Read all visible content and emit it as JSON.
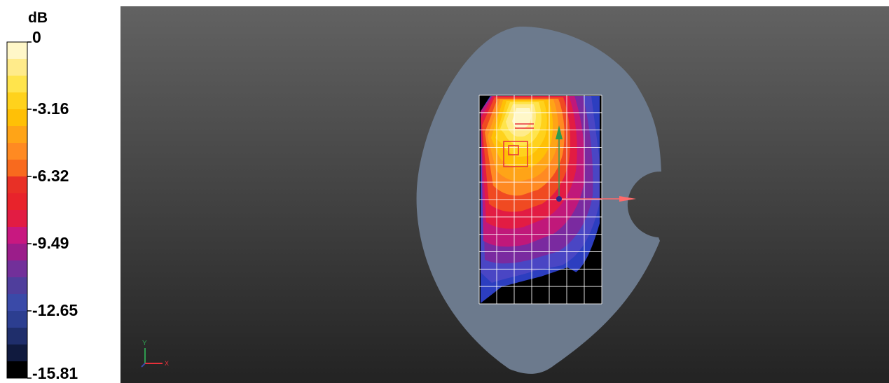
{
  "legend": {
    "unit": "dB",
    "ticks": [
      "0",
      "-3.16",
      "-6.32",
      "-9.49",
      "-12.65",
      "-15.81"
    ],
    "swatches": [
      "#fff7c8",
      "#ffeb8a",
      "#ffe44c",
      "#ffd21c",
      "#ffc006",
      "#ffa417",
      "#ff8a22",
      "#f86a1e",
      "#e83026",
      "#e8232b",
      "#e21c43",
      "#c81880",
      "#9b1d8a",
      "#72309a",
      "#4f3e9c",
      "#3a4aa8",
      "#2c3e90",
      "#1f2e6b",
      "#101a3e",
      "#000000"
    ]
  },
  "viewport": {
    "background_top": "#626262",
    "background_bottom": "#232323",
    "phantom_color": "#6c7a8d",
    "grid_color": "#ffffff",
    "arrow_x_color": "#ff6b6b",
    "arrow_y_color": "#2e9b4f",
    "origin_color": "#2a2a8a",
    "axes_indicator": {
      "y_label": "Y",
      "x_label": "X"
    }
  }
}
